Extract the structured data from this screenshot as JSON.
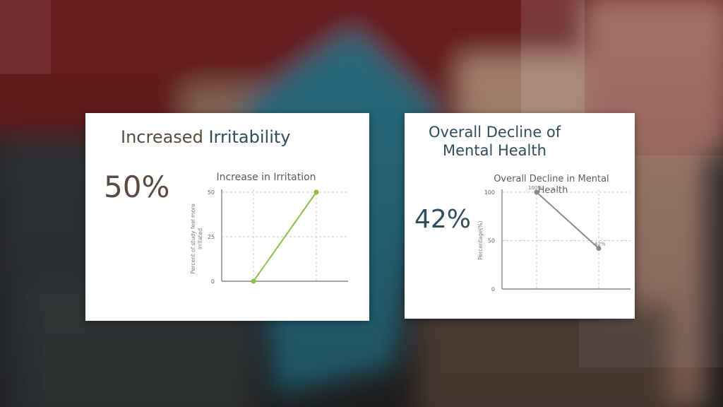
{
  "colors": {
    "left_line": "#8cc04a",
    "right_line": "#8a8a8a",
    "left_title_dark": "#5b4a3f",
    "left_title_accent": "#2f4d5a",
    "left_stat": "#5b4a3f",
    "right_stat": "#2f4d5a"
  },
  "left_card": {
    "title_part1": "Increased",
    "title_part2": "Irritability",
    "stat": "50%"
  },
  "right_card": {
    "title_line1": "Overall Decline of",
    "title_line2": "Mental Health",
    "stat": "42%"
  },
  "chart_data": [
    {
      "type": "line",
      "title": "Increase in Irritation",
      "xlabel": "",
      "ylabel": "Percent of study feel more irritated",
      "x": [
        0,
        1
      ],
      "series": [
        {
          "values": [
            0,
            50
          ]
        }
      ],
      "ylim": [
        0,
        50
      ],
      "yticks": [
        "0",
        "25",
        "50"
      ],
      "grid": true
    },
    {
      "type": "line",
      "title_line1": "Overall Decline in Mental",
      "title_line2": "Health",
      "xlabel": "",
      "ylabel": "Percentage(%)",
      "x": [
        0,
        1
      ],
      "series": [
        {
          "values": [
            100,
            42
          ]
        }
      ],
      "data_labels": [
        "100%",
        "42%"
      ],
      "ylim": [
        0,
        100
      ],
      "yticks": [
        "0",
        "50",
        "100"
      ],
      "grid": true
    }
  ]
}
